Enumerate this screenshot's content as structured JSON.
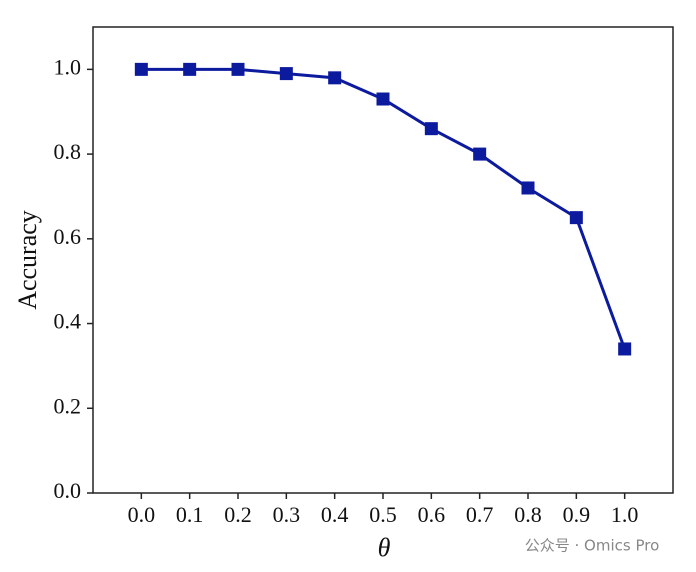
{
  "chart_data": {
    "type": "line",
    "x_label": "θ",
    "y_label": "Accuracy",
    "x": [
      0.0,
      0.1,
      0.2,
      0.3,
      0.4,
      0.5,
      0.6,
      0.7,
      0.8,
      0.9,
      1.0
    ],
    "series": [
      {
        "color": "#0c1a9e",
        "values": [
          1.0,
          1.0,
          1.0,
          0.99,
          0.98,
          0.93,
          0.86,
          0.8,
          0.72,
          0.65,
          0.34
        ]
      }
    ],
    "xlim": [
      -0.1,
      1.1
    ],
    "xticks": [
      {
        "value": 0,
        "label": "0.0"
      },
      0.1,
      0.2,
      0.3,
      0.4,
      0.5,
      0.6,
      0.7,
      0.8,
      0.9,
      {
        "value": 1,
        "label": "1.0"
      }
    ],
    "ylim": [
      0,
      1.1
    ],
    "yticks": [
      {
        "value": 0,
        "label": "0.0"
      },
      0.2,
      0.4,
      0.6,
      0.8,
      {
        "value": 1,
        "label": "1.0"
      }
    ],
    "watermark": "公众号 · Omics Pro"
  }
}
